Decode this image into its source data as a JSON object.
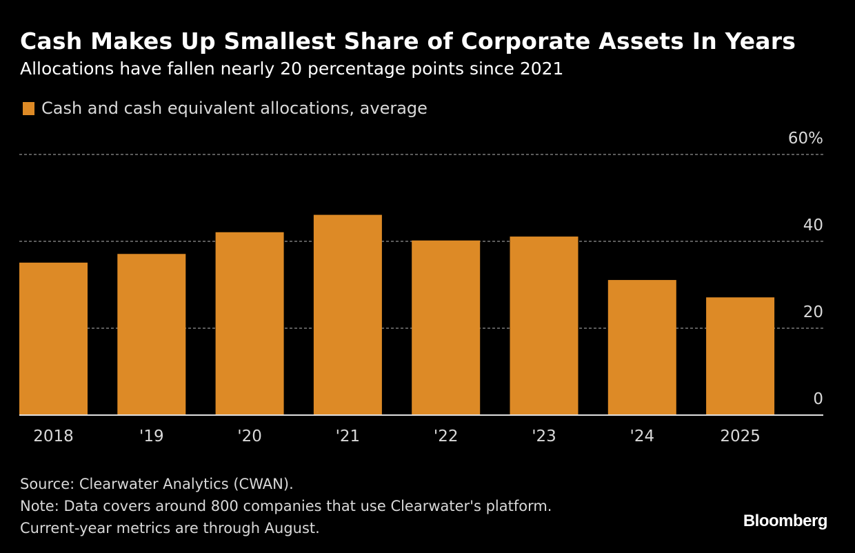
{
  "header": {
    "title": "Cash Makes Up Smallest Share of Corporate Assets In Years",
    "subtitle": "Allocations have fallen nearly 20 percentage points since 2021"
  },
  "footer": {
    "source": "Source: Clearwater Analytics (CWAN).",
    "note": "Note: Data covers around 800 companies that use Clearwater's platform.",
    "note2": "Current-year metrics are through August.",
    "brand": "Bloomberg"
  },
  "colors": {
    "background": "#000000",
    "bar": "#dd8a26",
    "grid": "#7a7a7a",
    "axis": "#e0e0e0",
    "text": "#d9d9d9"
  },
  "chart_data": {
    "type": "bar",
    "title": "Cash Makes Up Smallest Share of Corporate Assets In Years",
    "subtitle": "Allocations have fallen nearly 20 percentage points since 2021",
    "categories": [
      "2018",
      "'19",
      "'20",
      "'21",
      "'22",
      "'23",
      "'24",
      "2025"
    ],
    "series": [
      {
        "name": "Cash and cash equivalent allocations, average",
        "values": [
          35.1,
          37.1,
          42.1,
          46.1,
          40.2,
          41.1,
          31.1,
          27.1
        ]
      }
    ],
    "xlabel": "",
    "ylabel": "",
    "ylim": [
      0,
      60
    ],
    "yticks": [
      0,
      20,
      40,
      60
    ],
    "ytick_labels": [
      "0",
      "20",
      "40",
      "60%"
    ],
    "grid": true,
    "y_axis_side": "right",
    "legend_position": "top-left"
  }
}
